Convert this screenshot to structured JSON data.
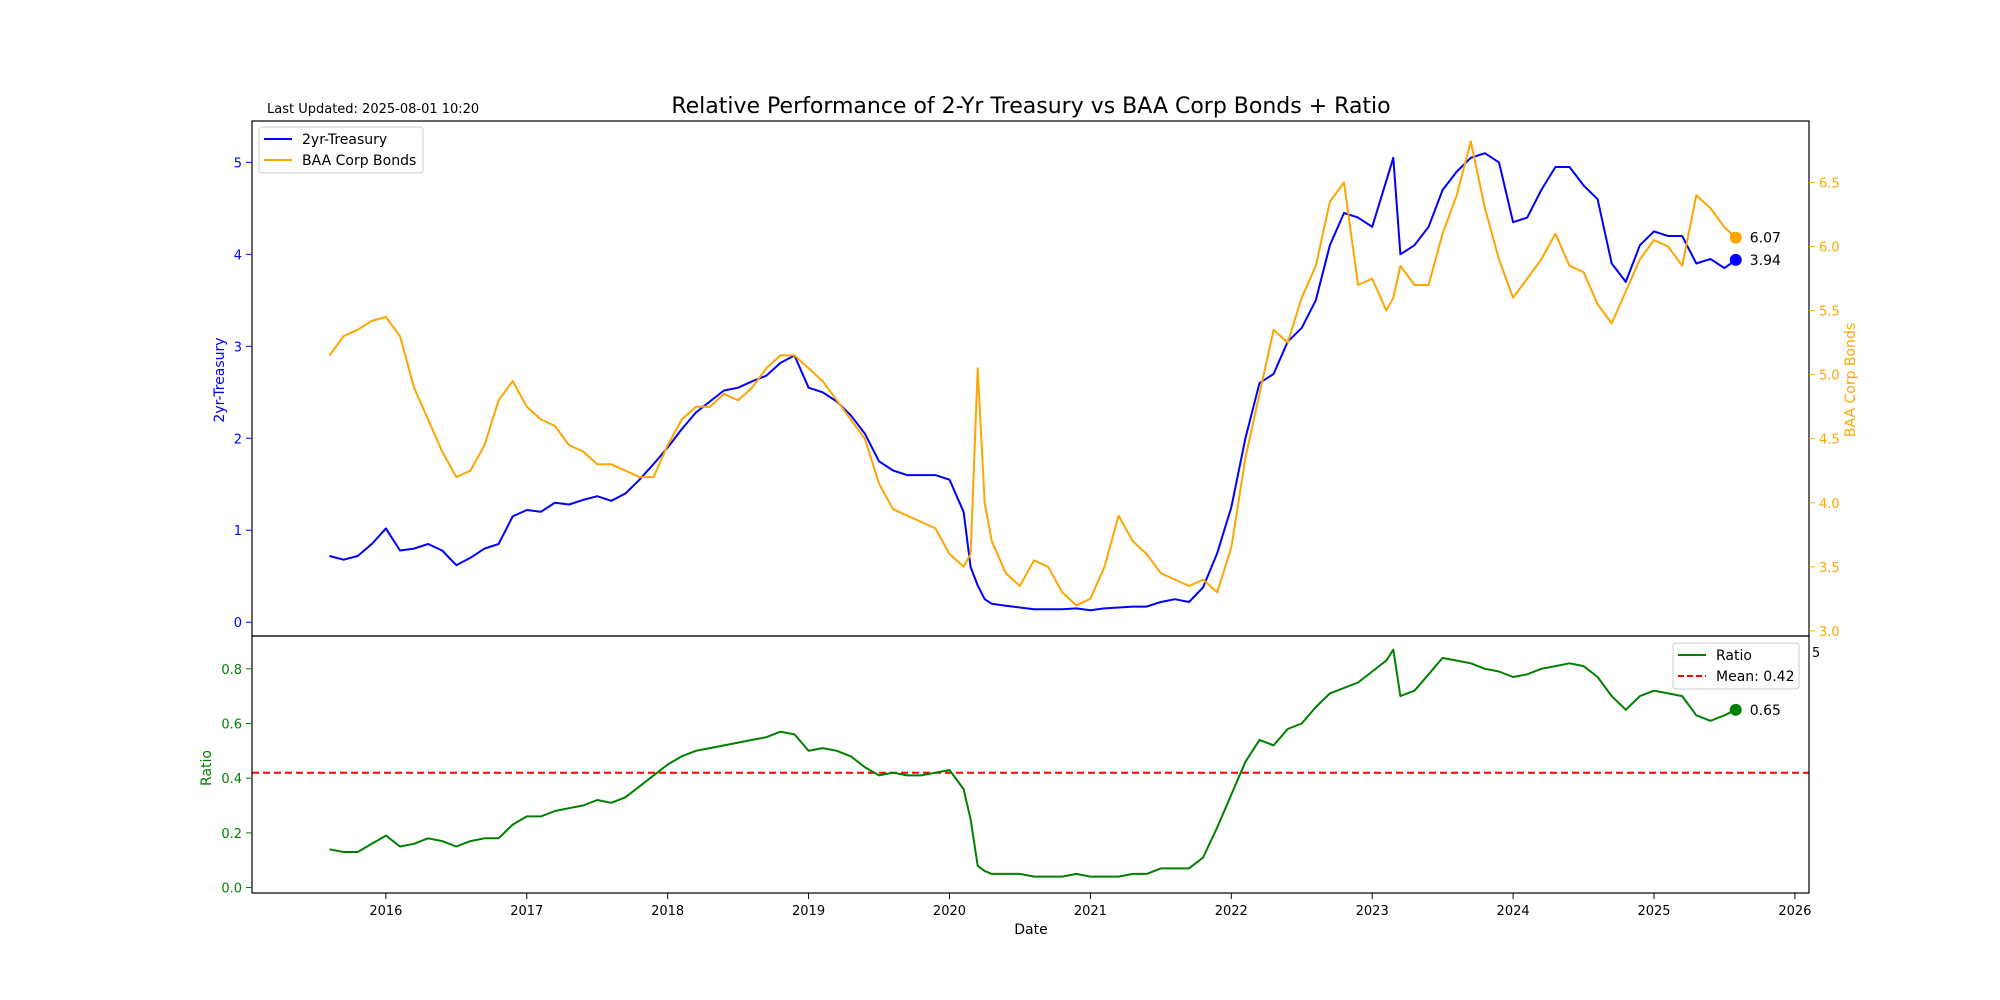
{
  "header": {
    "last_updated": "Last Updated: 2025-08-01 10:20"
  },
  "colors": {
    "treasury": "#0000ff",
    "baa": "#ffa500",
    "ratio": "#008000",
    "mean": "#ff0000",
    "axis": "#000000"
  },
  "chart_data": [
    {
      "type": "line",
      "title": "Relative Performance of 2-Yr Treasury vs BAA Corp Bonds + Ratio",
      "ylabel": "2yr-Treasury",
      "y2label": "BAA Corp Bonds",
      "ylim": [
        -0.15,
        5.45
      ],
      "y2lim": [
        2.96,
        6.98
      ],
      "yticks": [
        "0",
        "1",
        "2",
        "3",
        "4",
        "5"
      ],
      "y2ticks": [
        "3.0",
        "3.5",
        "4.0",
        "4.5",
        "5.0",
        "5.5",
        "6.0",
        "6.5"
      ],
      "xlim": [
        2015.05,
        2026.1
      ],
      "legend_placement": "top-left",
      "grid": false,
      "series": [
        {
          "name": "2yr-Treasury",
          "axis": "left",
          "last_label": "3.94",
          "x": [
            2015.6,
            2015.7,
            2015.8,
            2015.9,
            2016.0,
            2016.1,
            2016.2,
            2016.3,
            2016.4,
            2016.5,
            2016.6,
            2016.7,
            2016.8,
            2016.9,
            2017.0,
            2017.1,
            2017.2,
            2017.3,
            2017.4,
            2017.5,
            2017.6,
            2017.7,
            2017.8,
            2017.9,
            2018.0,
            2018.1,
            2018.2,
            2018.3,
            2018.4,
            2018.5,
            2018.6,
            2018.7,
            2018.8,
            2018.9,
            2019.0,
            2019.1,
            2019.2,
            2019.3,
            2019.4,
            2019.5,
            2019.6,
            2019.7,
            2019.8,
            2019.9,
            2020.0,
            2020.1,
            2020.15,
            2020.2,
            2020.25,
            2020.3,
            2020.4,
            2020.5,
            2020.6,
            2020.7,
            2020.8,
            2020.9,
            2021.0,
            2021.1,
            2021.2,
            2021.3,
            2021.4,
            2021.5,
            2021.6,
            2021.7,
            2021.8,
            2021.9,
            2022.0,
            2022.1,
            2022.2,
            2022.3,
            2022.4,
            2022.5,
            2022.6,
            2022.7,
            2022.8,
            2022.9,
            2023.0,
            2023.1,
            2023.15,
            2023.2,
            2023.3,
            2023.4,
            2023.5,
            2023.6,
            2023.7,
            2023.8,
            2023.9,
            2024.0,
            2024.1,
            2024.2,
            2024.3,
            2024.4,
            2024.5,
            2024.6,
            2024.7,
            2024.8,
            2024.9,
            2025.0,
            2025.1,
            2025.2,
            2025.3,
            2025.4,
            2025.5,
            2025.58
          ],
          "y": [
            0.72,
            0.68,
            0.72,
            0.85,
            1.02,
            0.78,
            0.8,
            0.85,
            0.78,
            0.62,
            0.7,
            0.8,
            0.85,
            1.15,
            1.22,
            1.2,
            1.3,
            1.28,
            1.33,
            1.37,
            1.32,
            1.4,
            1.55,
            1.72,
            1.9,
            2.1,
            2.28,
            2.4,
            2.52,
            2.55,
            2.62,
            2.68,
            2.82,
            2.9,
            2.55,
            2.5,
            2.4,
            2.25,
            2.05,
            1.75,
            1.65,
            1.6,
            1.6,
            1.6,
            1.55,
            1.2,
            0.6,
            0.4,
            0.25,
            0.2,
            0.18,
            0.16,
            0.14,
            0.14,
            0.14,
            0.15,
            0.13,
            0.15,
            0.16,
            0.17,
            0.17,
            0.22,
            0.25,
            0.22,
            0.38,
            0.75,
            1.25,
            2.0,
            2.6,
            2.7,
            3.05,
            3.2,
            3.5,
            4.1,
            4.45,
            4.4,
            4.3,
            4.8,
            5.05,
            4.0,
            4.1,
            4.3,
            4.7,
            4.9,
            5.05,
            5.1,
            5.0,
            4.35,
            4.4,
            4.7,
            4.95,
            4.95,
            4.75,
            4.6,
            3.9,
            3.7,
            4.1,
            4.25,
            4.2,
            4.2,
            3.9,
            3.95,
            3.85,
            3.94
          ]
        },
        {
          "name": "BAA Corp Bonds",
          "axis": "right",
          "last_label": "6.07",
          "x": [
            2015.6,
            2015.7,
            2015.8,
            2015.9,
            2016.0,
            2016.1,
            2016.2,
            2016.3,
            2016.4,
            2016.5,
            2016.6,
            2016.7,
            2016.8,
            2016.9,
            2017.0,
            2017.1,
            2017.2,
            2017.3,
            2017.4,
            2017.5,
            2017.6,
            2017.7,
            2017.8,
            2017.9,
            2018.0,
            2018.1,
            2018.2,
            2018.3,
            2018.4,
            2018.5,
            2018.6,
            2018.7,
            2018.8,
            2018.9,
            2019.0,
            2019.1,
            2019.2,
            2019.3,
            2019.4,
            2019.5,
            2019.6,
            2019.7,
            2019.8,
            2019.9,
            2020.0,
            2020.1,
            2020.15,
            2020.2,
            2020.25,
            2020.3,
            2020.4,
            2020.5,
            2020.6,
            2020.7,
            2020.8,
            2020.9,
            2021.0,
            2021.1,
            2021.2,
            2021.3,
            2021.4,
            2021.5,
            2021.6,
            2021.7,
            2021.8,
            2021.9,
            2022.0,
            2022.1,
            2022.2,
            2022.3,
            2022.4,
            2022.5,
            2022.6,
            2022.7,
            2022.8,
            2022.9,
            2023.0,
            2023.1,
            2023.15,
            2023.2,
            2023.3,
            2023.4,
            2023.5,
            2023.6,
            2023.7,
            2023.8,
            2023.9,
            2024.0,
            2024.1,
            2024.2,
            2024.3,
            2024.4,
            2024.5,
            2024.6,
            2024.7,
            2024.8,
            2024.9,
            2025.0,
            2025.1,
            2025.2,
            2025.3,
            2025.4,
            2025.5,
            2025.58
          ],
          "y": [
            5.15,
            5.3,
            5.35,
            5.42,
            5.45,
            5.3,
            4.9,
            4.65,
            4.4,
            4.2,
            4.25,
            4.45,
            4.8,
            4.95,
            4.75,
            4.65,
            4.6,
            4.45,
            4.4,
            4.3,
            4.3,
            4.25,
            4.2,
            4.2,
            4.45,
            4.65,
            4.75,
            4.75,
            4.85,
            4.8,
            4.9,
            5.05,
            5.15,
            5.15,
            5.05,
            4.95,
            4.8,
            4.65,
            4.5,
            4.15,
            3.95,
            3.9,
            3.85,
            3.8,
            3.6,
            3.5,
            3.6,
            5.05,
            4.0,
            3.7,
            3.45,
            3.35,
            3.55,
            3.5,
            3.3,
            3.2,
            3.25,
            3.5,
            3.9,
            3.7,
            3.6,
            3.45,
            3.4,
            3.35,
            3.4,
            3.3,
            3.65,
            4.35,
            4.85,
            5.35,
            5.25,
            5.6,
            5.85,
            6.35,
            6.5,
            5.7,
            5.75,
            5.5,
            5.6,
            5.85,
            5.7,
            5.7,
            6.1,
            6.4,
            6.82,
            6.3,
            5.9,
            5.6,
            5.75,
            5.9,
            6.1,
            5.85,
            5.8,
            5.55,
            5.4,
            5.65,
            5.9,
            6.05,
            6.0,
            5.85,
            6.4,
            6.3,
            6.15,
            6.07
          ]
        }
      ]
    },
    {
      "type": "line",
      "xlabel": "Date",
      "ylabel": "Ratio",
      "ylim": [
        -0.02,
        0.92
      ],
      "yticks": [
        "0.0",
        "0.2",
        "0.4",
        "0.6",
        "0.8"
      ],
      "xlim": [
        2015.05,
        2026.1
      ],
      "xticks": [
        "2016",
        "2017",
        "2018",
        "2019",
        "2020",
        "2021",
        "2022",
        "2023",
        "2024",
        "2025",
        "2026"
      ],
      "legend_placement": "top-right",
      "grid": false,
      "mean": 0.42,
      "mean_label": "Mean: 0.42",
      "stray_tick_fragment": "5",
      "series": [
        {
          "name": "Ratio",
          "last_label": "0.65",
          "x": [
            2015.6,
            2015.7,
            2015.8,
            2015.9,
            2016.0,
            2016.1,
            2016.2,
            2016.3,
            2016.4,
            2016.5,
            2016.6,
            2016.7,
            2016.8,
            2016.9,
            2017.0,
            2017.1,
            2017.2,
            2017.3,
            2017.4,
            2017.5,
            2017.6,
            2017.7,
            2017.8,
            2017.9,
            2018.0,
            2018.1,
            2018.2,
            2018.3,
            2018.4,
            2018.5,
            2018.6,
            2018.7,
            2018.8,
            2018.9,
            2019.0,
            2019.1,
            2019.2,
            2019.3,
            2019.4,
            2019.5,
            2019.6,
            2019.7,
            2019.8,
            2019.9,
            2020.0,
            2020.1,
            2020.15,
            2020.2,
            2020.25,
            2020.3,
            2020.4,
            2020.5,
            2020.6,
            2020.7,
            2020.8,
            2020.9,
            2021.0,
            2021.1,
            2021.2,
            2021.3,
            2021.4,
            2021.5,
            2021.6,
            2021.7,
            2021.8,
            2021.9,
            2022.0,
            2022.1,
            2022.2,
            2022.3,
            2022.4,
            2022.5,
            2022.6,
            2022.7,
            2022.8,
            2022.9,
            2023.0,
            2023.1,
            2023.15,
            2023.2,
            2023.3,
            2023.4,
            2023.5,
            2023.6,
            2023.7,
            2023.8,
            2023.9,
            2024.0,
            2024.1,
            2024.2,
            2024.3,
            2024.4,
            2024.5,
            2024.6,
            2024.7,
            2024.8,
            2024.9,
            2025.0,
            2025.1,
            2025.2,
            2025.3,
            2025.4,
            2025.5,
            2025.58
          ],
          "y": [
            0.14,
            0.13,
            0.13,
            0.16,
            0.19,
            0.15,
            0.16,
            0.18,
            0.17,
            0.15,
            0.17,
            0.18,
            0.18,
            0.23,
            0.26,
            0.26,
            0.28,
            0.29,
            0.3,
            0.32,
            0.31,
            0.33,
            0.37,
            0.41,
            0.45,
            0.48,
            0.5,
            0.51,
            0.52,
            0.53,
            0.54,
            0.55,
            0.57,
            0.56,
            0.5,
            0.51,
            0.5,
            0.48,
            0.44,
            0.41,
            0.42,
            0.41,
            0.41,
            0.42,
            0.43,
            0.36,
            0.25,
            0.08,
            0.06,
            0.05,
            0.05,
            0.05,
            0.04,
            0.04,
            0.04,
            0.05,
            0.04,
            0.04,
            0.04,
            0.05,
            0.05,
            0.07,
            0.07,
            0.07,
            0.11,
            0.22,
            0.34,
            0.46,
            0.54,
            0.52,
            0.58,
            0.6,
            0.66,
            0.71,
            0.73,
            0.75,
            0.79,
            0.83,
            0.87,
            0.7,
            0.72,
            0.78,
            0.84,
            0.83,
            0.82,
            0.8,
            0.79,
            0.77,
            0.78,
            0.8,
            0.81,
            0.82,
            0.81,
            0.77,
            0.7,
            0.65,
            0.7,
            0.72,
            0.71,
            0.7,
            0.63,
            0.61,
            0.63,
            0.65
          ]
        }
      ]
    }
  ]
}
